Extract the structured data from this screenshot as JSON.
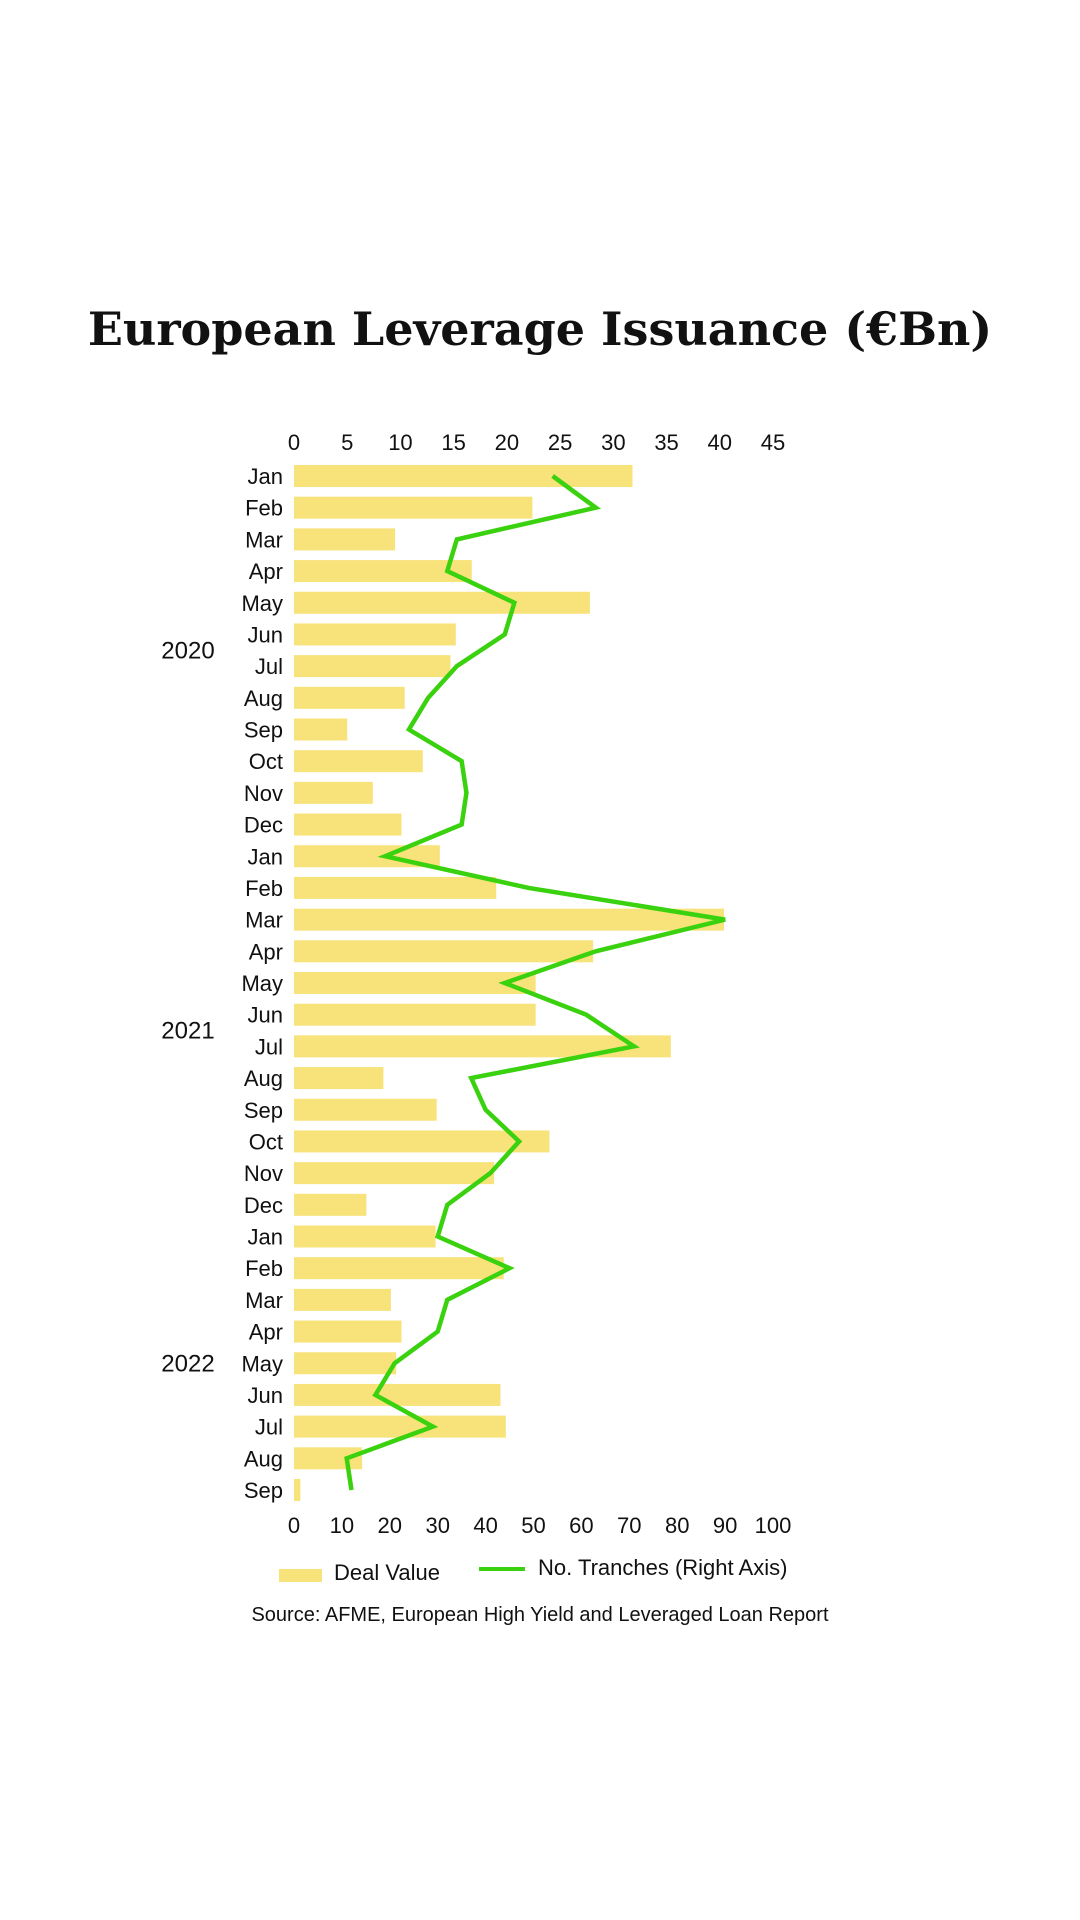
{
  "chart_data": {
    "type": "bar",
    "orientation": "horizontal",
    "title": "European Leverage Issuance (€Bn)",
    "categories": [
      "Jan",
      "Feb",
      "Mar",
      "Apr",
      "May",
      "Jun",
      "Jul",
      "Aug",
      "Sep",
      "Oct",
      "Nov",
      "Dec",
      "Jan",
      "Feb",
      "Mar",
      "Apr",
      "May",
      "Jun",
      "Jul",
      "Aug",
      "Sep",
      "Oct",
      "Nov",
      "Dec",
      "Jan",
      "Feb",
      "Mar",
      "Apr",
      "May",
      "Jun",
      "Jul",
      "Aug",
      "Sep"
    ],
    "groups": [
      {
        "label": "2020",
        "start": 0,
        "end": 11
      },
      {
        "label": "2021",
        "start": 12,
        "end": 23
      },
      {
        "label": "2022",
        "start": 24,
        "end": 32
      }
    ],
    "top_axis": {
      "ticks": [
        0,
        5,
        10,
        15,
        20,
        25,
        30,
        35,
        40,
        45
      ],
      "range": [
        0,
        45
      ]
    },
    "bottom_axis": {
      "ticks": [
        0,
        10,
        20,
        30,
        40,
        50,
        60,
        70,
        80,
        90,
        100
      ],
      "range": [
        0,
        100
      ]
    },
    "series": [
      {
        "name": "Deal Value",
        "type": "bar",
        "axis": "top",
        "color": "#f8e27a",
        "values": [
          31.8,
          22.4,
          9.5,
          16.7,
          27.8,
          15.2,
          14.7,
          10.4,
          5.0,
          12.1,
          7.4,
          10.1,
          13.7,
          19.0,
          40.4,
          28.1,
          22.7,
          22.7,
          35.4,
          8.4,
          13.4,
          24.0,
          18.8,
          6.8,
          13.3,
          19.7,
          9.1,
          10.1,
          9.6,
          19.4,
          19.9,
          6.4,
          0.6
        ]
      },
      {
        "name": "No. Tranches (Right Axis)",
        "type": "line",
        "axis": "bottom",
        "color": "#3ad10f",
        "values": [
          54,
          63,
          34,
          32,
          46,
          44,
          34,
          28,
          24,
          35,
          36,
          35,
          19,
          49,
          90,
          63,
          44,
          61,
          71,
          37,
          40,
          47,
          41,
          32,
          30,
          45,
          32,
          30,
          21,
          17,
          29,
          11,
          12
        ]
      }
    ],
    "legend_position": "bottom",
    "grid": false
  },
  "source": "Source:  AFME, European High Yield and Leveraged Loan Report"
}
